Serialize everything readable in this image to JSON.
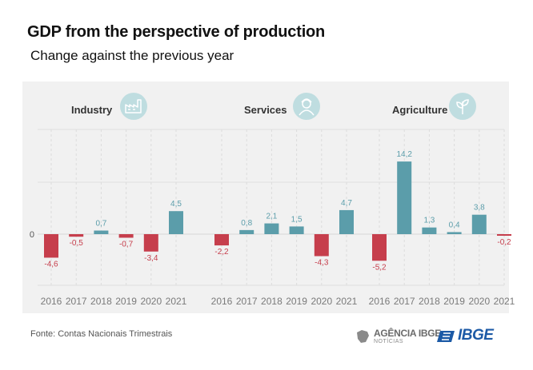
{
  "title": "GDP from the perspective of production",
  "subtitle": "Change against the previous year",
  "zero_label": "0",
  "source": "Fonte: Contas Nacionais Trimestrais",
  "logo_agencia_main": "AGÊNCIA IBGE",
  "logo_agencia_sub": "NOTÍCIAS",
  "logo_ibge": "IBGE",
  "colors": {
    "positive": "#5b9daa",
    "negative": "#c63e4c",
    "panel_bg": "#f1f1f1",
    "icon_bg": "#bfdde0"
  },
  "icons": [
    "factory-icon",
    "worker-icon",
    "plant-icon"
  ],
  "chart_data": [
    {
      "type": "bar",
      "title": "Industry",
      "categories": [
        "2016",
        "2017",
        "2018",
        "2019",
        "2020",
        "2021"
      ],
      "values": [
        -4.6,
        -0.5,
        0.7,
        -0.7,
        -3.4,
        4.5
      ],
      "value_labels": [
        "-4,6",
        "-0,5",
        "0,7",
        "-0,7",
        "-3,4",
        "4,5"
      ]
    },
    {
      "type": "bar",
      "title": "Services",
      "categories": [
        "2016",
        "2017",
        "2018",
        "2019",
        "2020",
        "2021"
      ],
      "values": [
        -2.2,
        0.8,
        2.1,
        1.5,
        -4.3,
        4.7
      ],
      "value_labels": [
        "-2,2",
        "0,8",
        "2,1",
        "1,5",
        "-4,3",
        "4,7"
      ]
    },
    {
      "type": "bar",
      "title": "Agriculture",
      "categories": [
        "2016",
        "2017",
        "2018",
        "2019",
        "2020",
        "2021"
      ],
      "values": [
        -5.2,
        14.2,
        1.3,
        0.4,
        3.8,
        -0.2
      ],
      "value_labels": [
        "-5,2",
        "14,2",
        "1,3",
        "0,4",
        "3,8",
        "-0,2"
      ]
    }
  ]
}
